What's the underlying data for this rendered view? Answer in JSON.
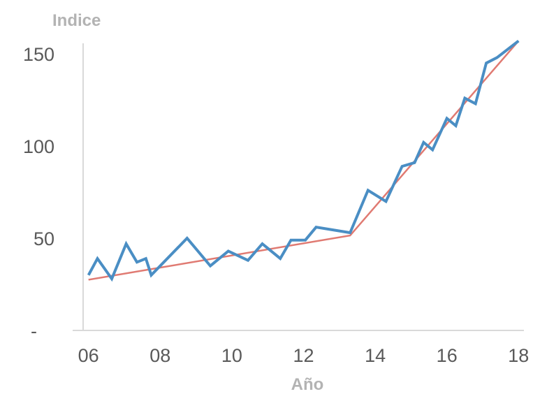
{
  "chart_data": {
    "type": "line",
    "ylabel": "Indice",
    "xlabel": "Año",
    "xlim": [
      2005.85,
      2018.15
    ],
    "ylim": [
      0,
      158
    ],
    "x_ticks": [
      {
        "value": 2006,
        "label": "06"
      },
      {
        "value": 2008,
        "label": "08"
      },
      {
        "value": 2010,
        "label": "10"
      },
      {
        "value": 2012,
        "label": "12"
      },
      {
        "value": 2014,
        "label": "14"
      },
      {
        "value": 2016,
        "label": "16"
      },
      {
        "value": 2018,
        "label": "18"
      }
    ],
    "y_ticks": [
      {
        "value": 0,
        "label": "-"
      },
      {
        "value": 50,
        "label": "50"
      },
      {
        "value": 100,
        "label": "100"
      },
      {
        "value": 150,
        "label": "150"
      }
    ],
    "grid": false,
    "legend": "none",
    "series": [
      {
        "color": "#4a8ec4",
        "x": [
          2006.0,
          2006.25,
          2006.65,
          2007.05,
          2007.35,
          2007.6,
          2007.75,
          2008.75,
          2009.4,
          2009.9,
          2010.45,
          2010.85,
          2011.35,
          2011.65,
          2012.05,
          2012.35,
          2013.3,
          2013.8,
          2014.3,
          2014.75,
          2015.1,
          2015.35,
          2015.6,
          2016.0,
          2016.25,
          2016.5,
          2016.8,
          2017.1,
          2017.4,
          2018.0
        ],
        "y": [
          30,
          39,
          28,
          47,
          37,
          39,
          30,
          50,
          35,
          43,
          38,
          47,
          39,
          49,
          49,
          56,
          53,
          76,
          70,
          89,
          91,
          102,
          98,
          115,
          111,
          126,
          123,
          145,
          148,
          157
        ]
      },
      {
        "color": "#e07a72",
        "x": [
          2006.0,
          2013.3,
          2018.0
        ],
        "y": [
          27.5,
          51.5,
          157
        ]
      }
    ]
  }
}
